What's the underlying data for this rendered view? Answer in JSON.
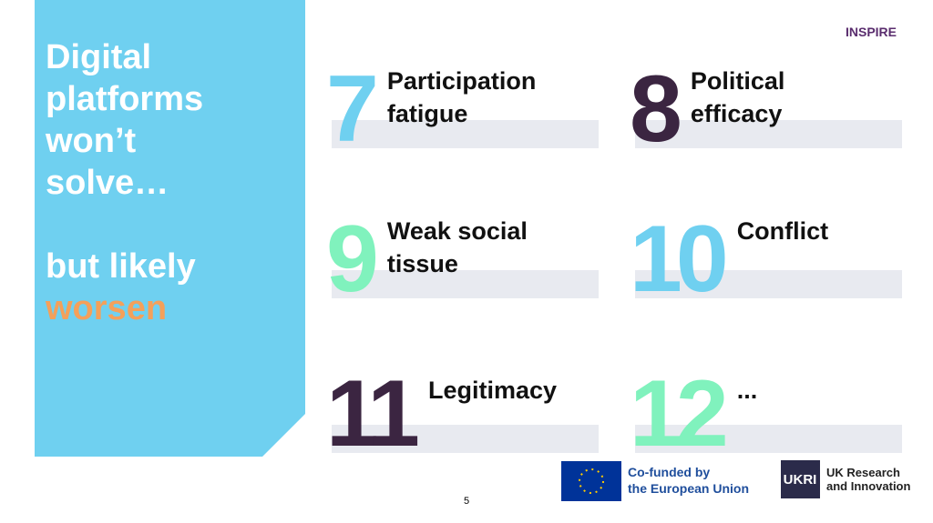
{
  "sidebar": {
    "lines": [
      "Digital",
      "platforms",
      "won’t",
      "solve…"
    ],
    "lines2": [
      "but likely"
    ],
    "highlight": "worsen"
  },
  "items": [
    {
      "number": 7,
      "color": "#6fd0f0",
      "label": [
        "Participation",
        "fatigue"
      ]
    },
    {
      "number": 8,
      "color": "#3b2541",
      "label": [
        "Political",
        "efficacy"
      ]
    },
    {
      "number": 9,
      "color": "#80f2bd",
      "label": [
        "Weak social",
        "tissue"
      ]
    },
    {
      "number": 10,
      "color": "#6fd0f0",
      "label": [
        "Conflict"
      ]
    },
    {
      "number": 11,
      "color": "#3b2541",
      "label": [
        "Legitimacy"
      ]
    },
    {
      "number": 12,
      "color": "#80f2bd",
      "label": [
        "..."
      ]
    }
  ],
  "logo": "INSPIRE",
  "footer": {
    "eu": [
      "Co-funded by",
      "the European Union"
    ],
    "ukri_mark": "UKRI",
    "ukri": [
      "UK Research",
      "and Innovation"
    ]
  },
  "page_number": 5
}
